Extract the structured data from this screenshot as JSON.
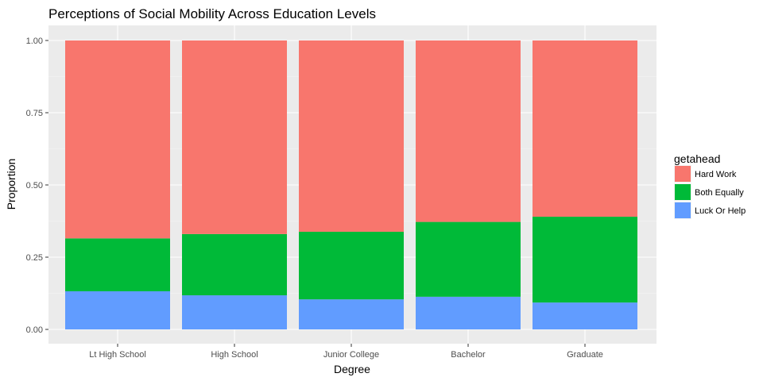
{
  "chart_data": {
    "type": "bar",
    "stacked": true,
    "title": "Perceptions of Social Mobility Across Education Levels",
    "xlabel": "Degree",
    "ylabel": "Proportion",
    "ylim": [
      0,
      1
    ],
    "yticks": [
      "0.00",
      "0.25",
      "0.50",
      "0.75",
      "1.00"
    ],
    "ytick_values": [
      0,
      0.25,
      0.5,
      0.75,
      1.0
    ],
    "grid": true,
    "legend_position": "right",
    "legend_title": "getahead",
    "categories": [
      "Lt High School",
      "High School",
      "Junior College",
      "Bachelor",
      "Graduate"
    ],
    "series": [
      {
        "name": "Luck Or Help",
        "color": "#619CFF",
        "values": [
          0.132,
          0.118,
          0.104,
          0.113,
          0.093
        ]
      },
      {
        "name": "Both Equally",
        "color": "#00BA38",
        "values": [
          0.183,
          0.212,
          0.234,
          0.259,
          0.297
        ]
      },
      {
        "name": "Hard Work",
        "color": "#F8766D",
        "values": [
          0.685,
          0.67,
          0.662,
          0.628,
          0.61
        ]
      }
    ],
    "legend_order": [
      "Hard Work",
      "Both Equally",
      "Luck Or Help"
    ]
  }
}
